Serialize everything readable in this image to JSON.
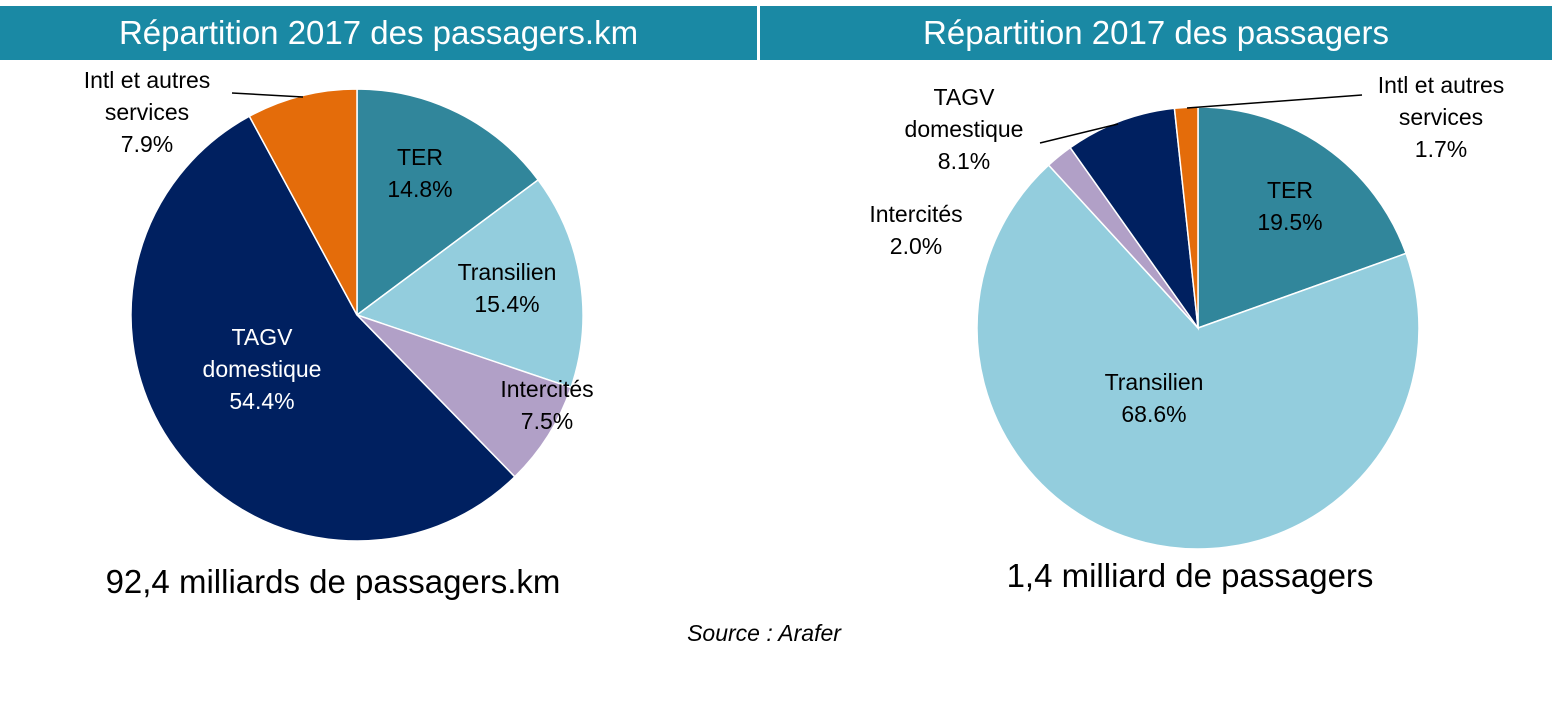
{
  "colors": {
    "header_bg": "#1a89a4",
    "TER": "#31869b",
    "Transilien": "#93cddd",
    "Intercites": "#b1a0c7",
    "TAGV domestique": "#002060",
    "Intl et autres services": "#e46c0a"
  },
  "chart_data": [
    {
      "type": "pie",
      "title": "Répartition 2017 des passagers.km",
      "total_label": "92,4 milliards de passagers.km",
      "slices": [
        {
          "label_lines": [
            "TER"
          ],
          "value": 14.8,
          "value_label": "14.8%",
          "color": "#31869b",
          "label_color": "#000000"
        },
        {
          "label_lines": [
            "Transilien"
          ],
          "value": 15.4,
          "value_label": "15.4%",
          "color": "#93cddd",
          "label_color": "#000000"
        },
        {
          "label_lines": [
            "Intercités"
          ],
          "value": 7.5,
          "value_label": "7.5%",
          "color": "#b1a0c7",
          "label_color": "#000000"
        },
        {
          "label_lines": [
            "TAGV",
            "domestique"
          ],
          "value": 54.4,
          "value_label": "54.4%",
          "color": "#002060",
          "label_color": "#ffffff"
        },
        {
          "label_lines": [
            "Intl et autres",
            "services"
          ],
          "value": 7.9,
          "value_label": "7.9%",
          "color": "#e46c0a",
          "label_color": "#000000"
        }
      ]
    },
    {
      "type": "pie",
      "title": "Répartition 2017 des passagers",
      "total_label": "1,4 milliard de passagers",
      "slices": [
        {
          "label_lines": [
            "TER"
          ],
          "value": 19.5,
          "value_label": "19.5%",
          "color": "#31869b",
          "label_color": "#000000"
        },
        {
          "label_lines": [
            "Transilien"
          ],
          "value": 68.6,
          "value_label": "68.6%",
          "color": "#93cddd",
          "label_color": "#000000"
        },
        {
          "label_lines": [
            "Intercités"
          ],
          "value": 2.0,
          "value_label": "2.0%",
          "color": "#b1a0c7",
          "label_color": "#000000"
        },
        {
          "label_lines": [
            "TAGV",
            "domestique"
          ],
          "value": 8.1,
          "value_label": "8.1%",
          "color": "#002060",
          "label_color": "#000000"
        },
        {
          "label_lines": [
            "Intl et autres",
            "services"
          ],
          "value": 1.7,
          "value_label": "1.7%",
          "color": "#e46c0a",
          "label_color": "#000000"
        }
      ]
    }
  ],
  "source": "Source : Arafer"
}
